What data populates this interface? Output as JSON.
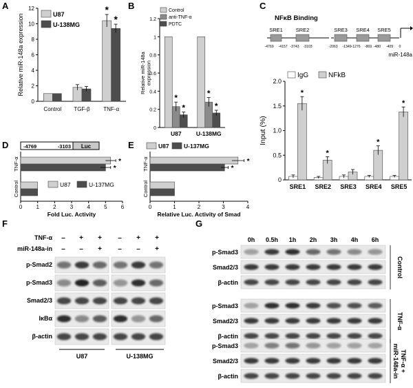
{
  "panels": {
    "A": "A",
    "B": "B",
    "C": "C",
    "D": "D",
    "E": "E",
    "F": "F",
    "G": "G"
  },
  "colors": {
    "light": "#cfcfcf",
    "mid": "#8a8a8a",
    "dark": "#4d4d4d",
    "white": "#ffffff",
    "axis": "#000000"
  },
  "chart_data": [
    {
      "id": "A",
      "type": "bar",
      "ylabel": "Relative miR-148a expression",
      "ylim": [
        0,
        12
      ],
      "yticks": [
        0,
        2,
        4,
        6,
        8,
        10,
        12
      ],
      "categories": [
        "Control",
        "TGF-β",
        "TNF-α"
      ],
      "series": [
        {
          "name": "U87",
          "values": [
            1.0,
            1.8,
            10.4
          ],
          "errors": [
            0,
            0.35,
            0.8
          ]
        },
        {
          "name": "U-138MG",
          "values": [
            1.0,
            1.6,
            9.4
          ],
          "errors": [
            0,
            0.3,
            0.55
          ]
        }
      ],
      "significance": [
        [
          2,
          0,
          "*"
        ],
        [
          2,
          1,
          "*"
        ]
      ]
    },
    {
      "id": "B",
      "type": "bar",
      "ylabel": "Relative miR-148a expression",
      "ylim": [
        0,
        1.2
      ],
      "yticks": [
        0,
        0.2,
        0.4,
        0.6,
        0.8,
        1.0,
        1.2
      ],
      "categories": [
        "U87",
        "U-138MG"
      ],
      "series": [
        {
          "name": "Control",
          "values": [
            1.0,
            1.0
          ],
          "errors": [
            0,
            0
          ]
        },
        {
          "name": "anti-TNF-α",
          "values": [
            0.23,
            0.28
          ],
          "errors": [
            0.05,
            0.05
          ]
        },
        {
          "name": "PDTC",
          "values": [
            0.14,
            0.16
          ],
          "errors": [
            0.03,
            0.03
          ]
        }
      ],
      "significance": [
        [
          0,
          1,
          "*"
        ],
        [
          0,
          2,
          "*"
        ],
        [
          1,
          1,
          "*"
        ],
        [
          1,
          2,
          "*"
        ]
      ]
    },
    {
      "id": "C",
      "type": "bar",
      "ylabel": "Input (%)",
      "ylim": [
        0,
        2.0
      ],
      "yticks": [
        0,
        0.5,
        1.0,
        1.5,
        2.0
      ],
      "categories": [
        "SRE1",
        "SRE2",
        "SRE3",
        "SRE4",
        "SRE5"
      ],
      "series": [
        {
          "name": "IgG",
          "values": [
            0.07,
            0.05,
            0.07,
            0.07,
            0.07
          ],
          "errors": [
            0.03,
            0.02,
            0.03,
            0.02,
            0.02
          ]
        },
        {
          "name": "NFkB",
          "values": [
            1.55,
            0.4,
            0.16,
            0.6,
            1.38
          ],
          "errors": [
            0.14,
            0.07,
            0.05,
            0.09,
            0.1
          ]
        }
      ],
      "significance": [
        [
          0,
          1,
          "*"
        ],
        [
          1,
          1,
          "*"
        ],
        [
          3,
          1,
          "*"
        ],
        [
          4,
          1,
          "*"
        ]
      ]
    },
    {
      "id": "D",
      "type": "bar",
      "orientation": "horizontal",
      "xlabel": "Fold Luc. Activity",
      "xlim": [
        0,
        6
      ],
      "xticks": [
        0,
        1,
        2,
        3,
        4,
        5,
        6
      ],
      "categories": [
        "TNF-α",
        "Control"
      ],
      "series": [
        {
          "name": "U87",
          "values": [
            5.3,
            1.0
          ],
          "errors": [
            0.3,
            0
          ]
        },
        {
          "name": "U-137MG",
          "values": [
            5.0,
            1.0
          ],
          "errors": [
            0.3,
            0
          ]
        }
      ],
      "significance": [
        [
          0,
          0,
          "*"
        ],
        [
          0,
          1,
          "*"
        ]
      ]
    },
    {
      "id": "E",
      "type": "bar",
      "orientation": "horizontal",
      "xlabel": "Relative Luc. Activity of Smad",
      "xlim": [
        0,
        4
      ],
      "xticks": [
        0,
        1,
        2,
        3,
        4
      ],
      "categories": [
        "TNF-α",
        "Control"
      ],
      "series": [
        {
          "name": "U87",
          "values": [
            3.6,
            1.0
          ],
          "errors": [
            0.25,
            0
          ]
        },
        {
          "name": "U-137MG",
          "values": [
            3.05,
            1.0
          ],
          "errors": [
            0.15,
            0
          ]
        }
      ],
      "significance": [
        [
          0,
          0,
          "*"
        ],
        [
          0,
          1,
          "*"
        ]
      ]
    }
  ],
  "panelC": {
    "title": "NFκB Binding",
    "mirLabel": "miR-148a",
    "sites": [
      "SRE1",
      "SRE2",
      "SRE3",
      "SRE4",
      "SRE5"
    ],
    "coords": [
      "-4769",
      "-4157",
      "-3743",
      "-3103",
      "-2063",
      "-1349",
      "-1276",
      "-869",
      "-480",
      "-409",
      "0"
    ]
  },
  "panelD": {
    "construct": [
      "-4769",
      "-3103",
      "Luc"
    ]
  },
  "panelF": {
    "treatments": [
      {
        "label": "TNF-α",
        "values": [
          "–",
          "+",
          "+",
          "–",
          "+",
          "+"
        ]
      },
      {
        "label": "miR-148a-in",
        "values": [
          "–",
          "–",
          "+",
          "–",
          "–",
          "+"
        ]
      }
    ],
    "blots": [
      "p-Smad2",
      "p-Smad3",
      "Smad2/3",
      "IκBα",
      "β-actin"
    ],
    "cells": [
      "U87",
      "U-138MG"
    ],
    "intensities": [
      [
        0.55,
        0.8,
        0.6,
        0.55,
        0.8,
        0.55
      ],
      [
        0.45,
        0.9,
        0.65,
        0.4,
        0.85,
        0.6
      ],
      [
        0.75,
        0.75,
        0.75,
        0.75,
        0.75,
        0.75
      ],
      [
        0.85,
        0.45,
        0.65,
        0.85,
        0.4,
        0.6
      ],
      [
        0.75,
        0.75,
        0.75,
        0.75,
        0.75,
        0.75
      ]
    ]
  },
  "panelG": {
    "times": [
      "0h",
      "0.5h",
      "1h",
      "2h",
      "3h",
      "4h",
      "6h"
    ],
    "groups": [
      {
        "label": "Control",
        "blots": [
          "p-Smad3",
          "Smad2/3",
          "β-actin"
        ],
        "intensities": [
          [
            0.35,
            0.8,
            0.85,
            0.6,
            0.55,
            0.45,
            0.4
          ],
          [
            0.8,
            0.8,
            0.8,
            0.8,
            0.8,
            0.8,
            0.8
          ],
          [
            0.75,
            0.75,
            0.75,
            0.75,
            0.75,
            0.75,
            0.75
          ]
        ]
      },
      {
        "label": "TNF-α",
        "blots": [
          "p-Smad3",
          "Smad2/3",
          "β-actin"
        ],
        "intensities": [
          [
            0.3,
            0.85,
            0.85,
            0.8,
            0.7,
            0.7,
            0.65
          ],
          [
            0.8,
            0.8,
            0.8,
            0.8,
            0.8,
            0.8,
            0.8
          ],
          [
            0.75,
            0.75,
            0.75,
            0.75,
            0.75,
            0.75,
            0.75
          ]
        ]
      },
      {
        "label": "TNF-α + miR-148a-in",
        "labelLines": [
          "TNF-α +",
          "miR-148a-in"
        ],
        "blots": [
          "p-Smad3",
          "Smad2/3",
          "β-actin"
        ],
        "intensities": [
          [
            0.3,
            0.5,
            0.55,
            0.4,
            0.35,
            0.35,
            0.3
          ],
          [
            0.8,
            0.8,
            0.8,
            0.8,
            0.8,
            0.8,
            0.8
          ],
          [
            0.75,
            0.75,
            0.75,
            0.75,
            0.75,
            0.75,
            0.75
          ]
        ]
      }
    ]
  }
}
